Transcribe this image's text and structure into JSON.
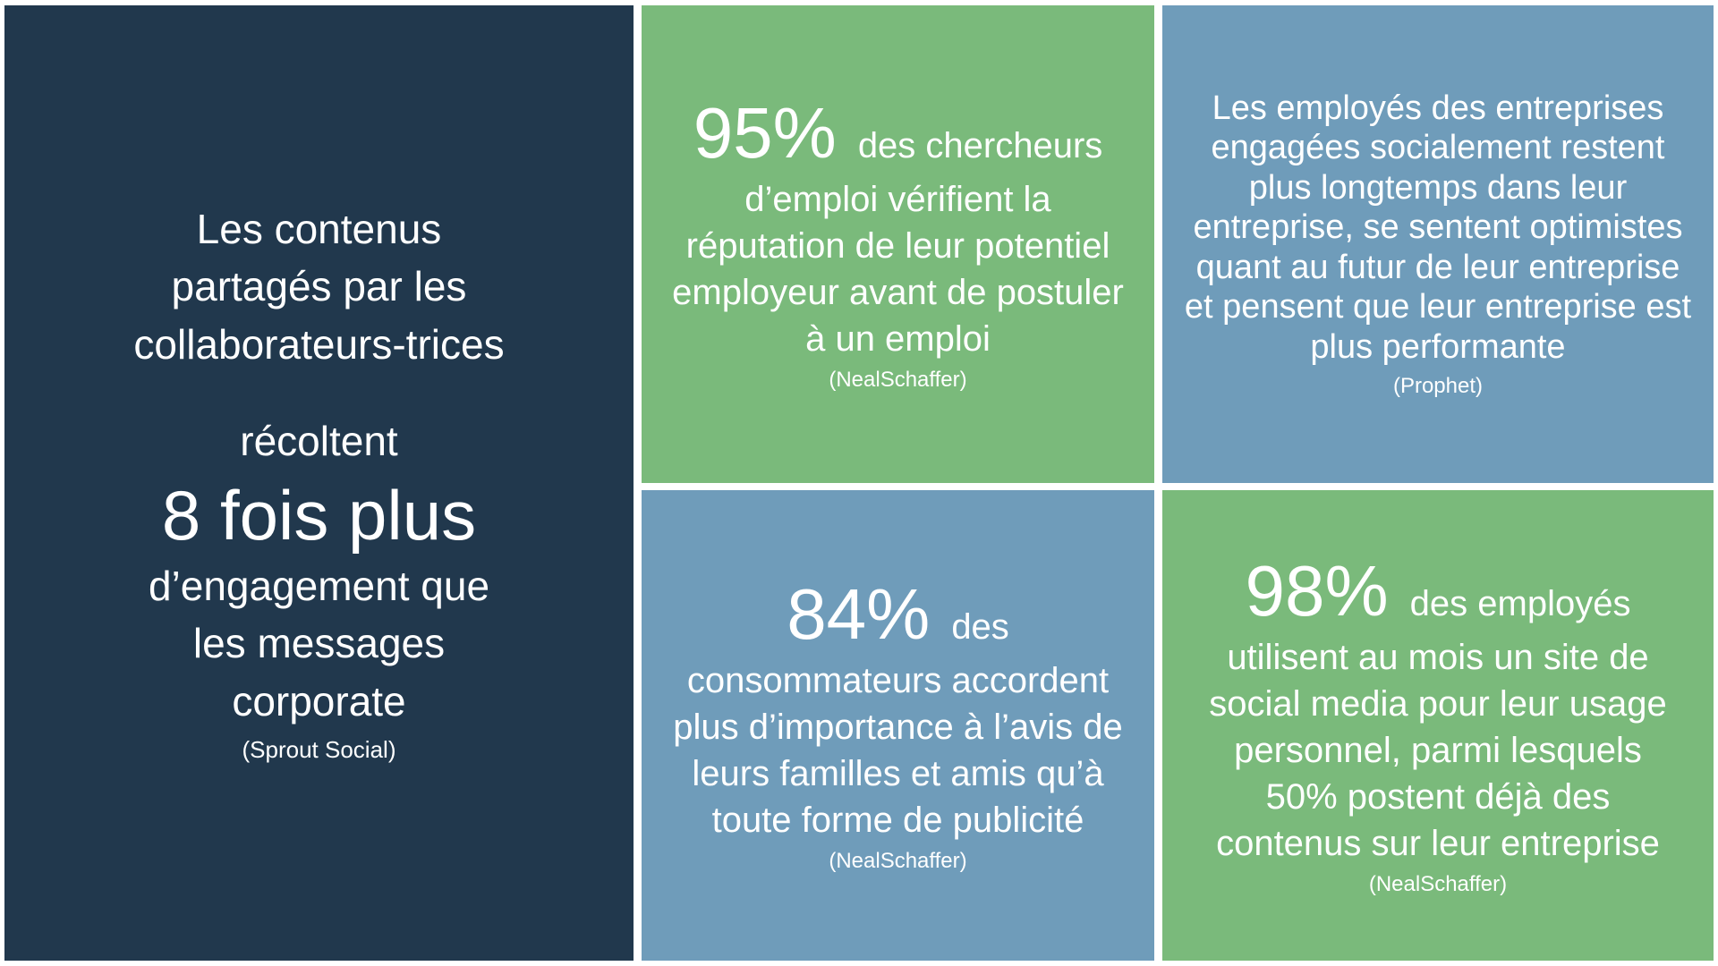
{
  "colors": {
    "background": "#FFFFFF",
    "navy": "#21384D",
    "green": "#7ABA7B",
    "blue": "#6F9CBA",
    "text": "#FFFFFF"
  },
  "panels": {
    "left": {
      "intro": "Les contenus\npartagés par les\ncollaborateurs-trices",
      "verb": "récoltent",
      "stat": "8 fois plus",
      "outro": "d’engagement que\nles messages\ncorporate",
      "source": "(Sprout Social)"
    },
    "top_middle": {
      "stat": "95%",
      "stat_suffix": "des chercheurs",
      "body": "d’emploi vérifient la\nréputation de leur potentiel\nemployeur avant de postuler\nà un emploi",
      "source": "(NealSchaffer)"
    },
    "top_right": {
      "body": "Les employés des entreprises\nengagées socialement restent\nplus longtemps dans leur\nentreprise, se sentent optimistes\nquant au futur de leur entreprise\net pensent que leur entreprise est\nplus performante",
      "source": "(Prophet)"
    },
    "bottom_middle": {
      "stat": "84%",
      "stat_suffix": "des",
      "body": "consommateurs accordent\nplus d’importance à l’avis de\nleurs familles et amis qu’à\ntoute forme de publicité",
      "source": "(NealSchaffer)"
    },
    "bottom_right": {
      "stat": "98%",
      "stat_suffix": "des employés",
      "body": "utilisent au mois un site de\nsocial media pour leur usage\npersonnel, parmi lesquels\n50% postent déjà des\ncontenus sur leur entreprise",
      "source": "(NealSchaffer)"
    }
  }
}
